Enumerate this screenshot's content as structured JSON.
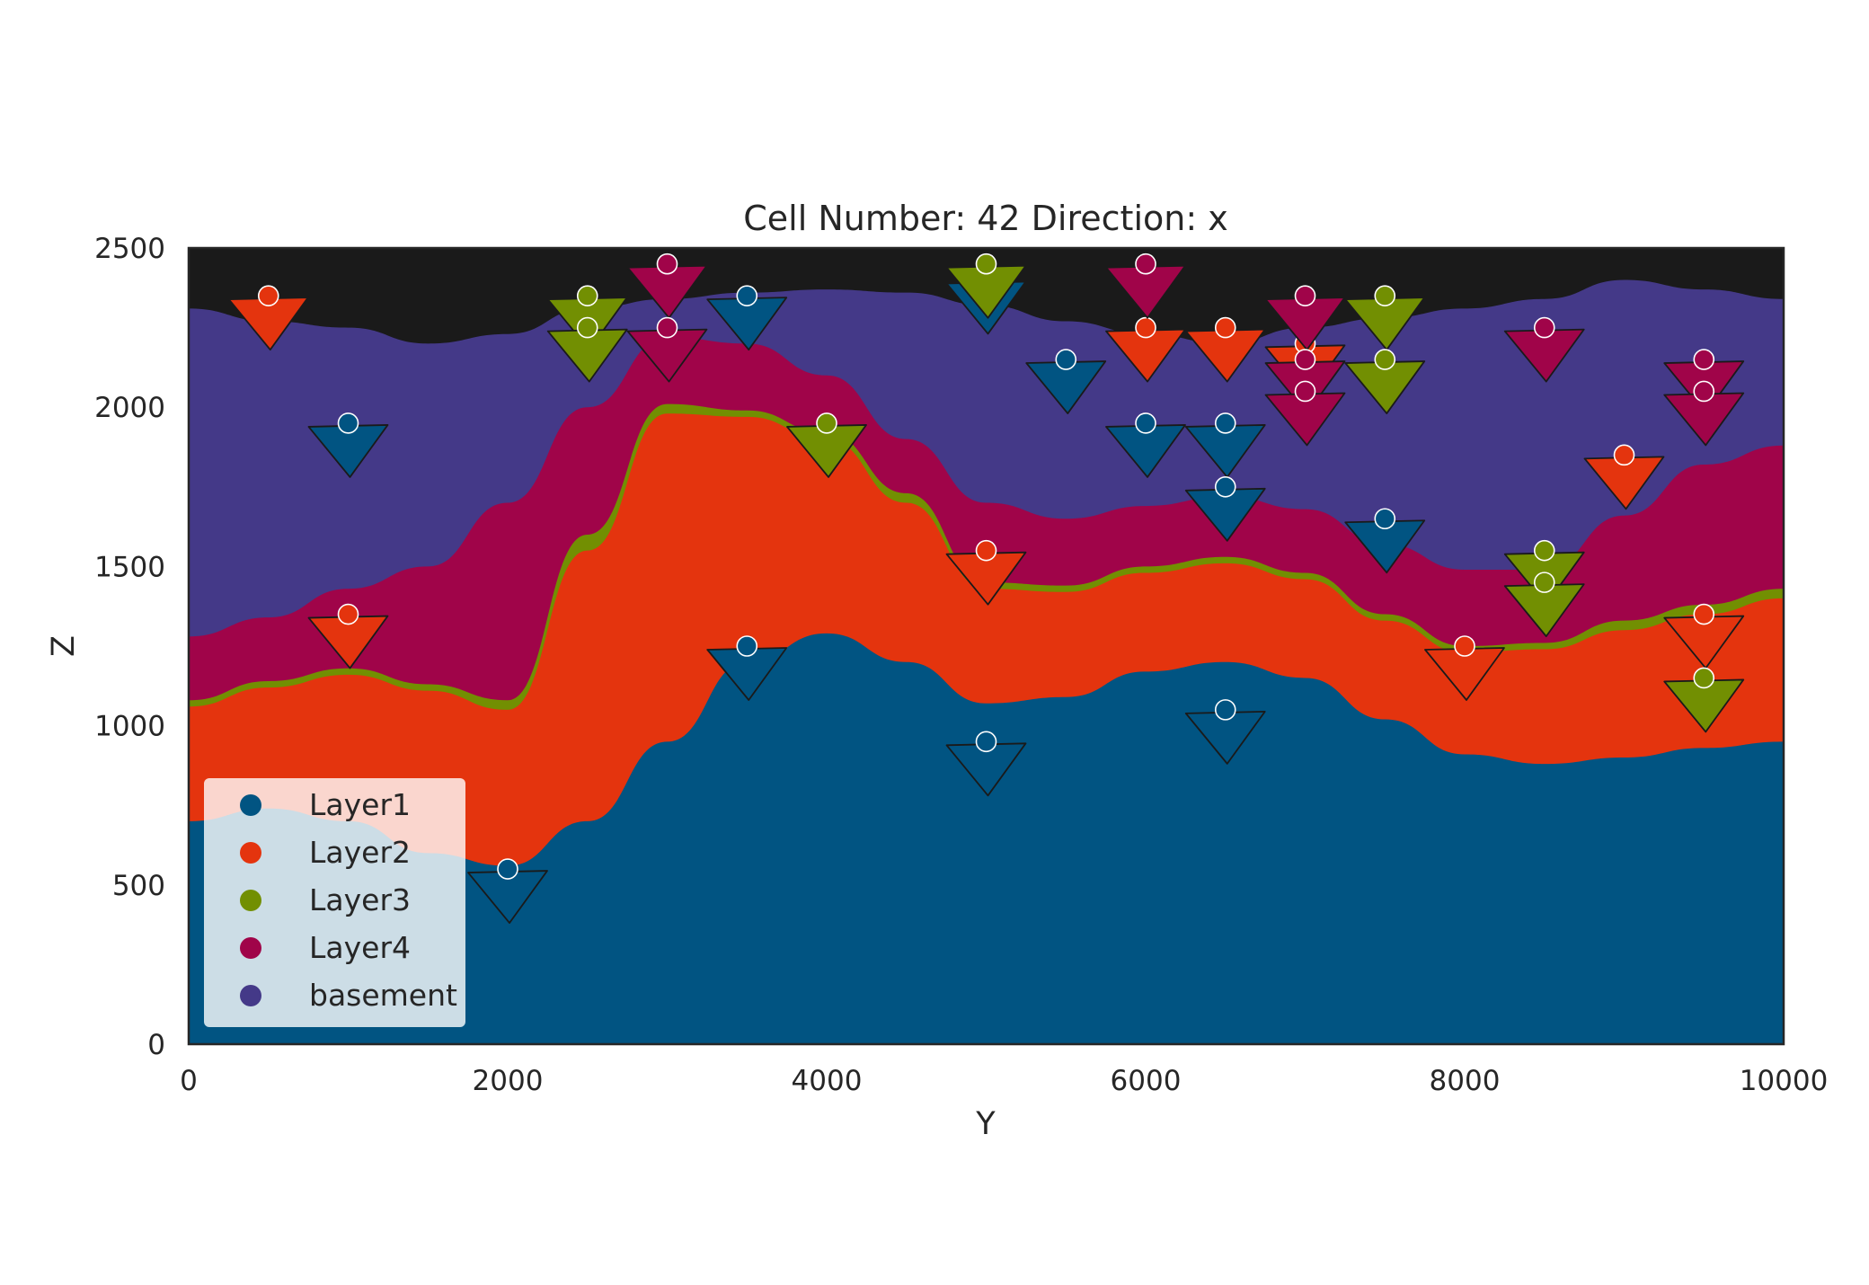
{
  "chart_data": {
    "type": "area",
    "title": "Cell Number: 42 Direction: x",
    "xlabel": "Y",
    "ylabel": "Z",
    "xlim": [
      0,
      10000
    ],
    "ylim": [
      0,
      2500
    ],
    "xticks": [
      0,
      2000,
      4000,
      6000,
      8000,
      10000
    ],
    "yticks": [
      0,
      500,
      1000,
      1500,
      2000,
      2500
    ],
    "grid": false,
    "legend_position": "lower-left",
    "colors": {
      "Layer1": "#015482",
      "Layer2": "#e4340e",
      "Layer3": "#728f02",
      "Layer4": "#a00449",
      "basement": "#443988",
      "above_topography": "#1a1a1a",
      "legend_box": "#ffffff"
    },
    "legend": [
      {
        "name": "Layer1",
        "color": "#015482"
      },
      {
        "name": "Layer2",
        "color": "#e4340e"
      },
      {
        "name": "Layer3",
        "color": "#728f02"
      },
      {
        "name": "Layer4",
        "color": "#a00449"
      },
      {
        "name": "basement",
        "color": "#443988"
      }
    ],
    "x": [
      0,
      500,
      1000,
      1500,
      2000,
      2500,
      3000,
      3500,
      4000,
      4500,
      5000,
      5500,
      6000,
      6500,
      7000,
      7500,
      8000,
      8500,
      9000,
      9500,
      10000
    ],
    "surfaces": [
      {
        "name": "Layer1",
        "top": [
          700,
          740,
          700,
          600,
          560,
          700,
          950,
          1200,
          1290,
          1200,
          1070,
          1090,
          1170,
          1200,
          1150,
          1020,
          910,
          880,
          900,
          930,
          950
        ]
      },
      {
        "name": "Layer2",
        "top": [
          1060,
          1120,
          1160,
          1110,
          1050,
          1550,
          1980,
          1970,
          1900,
          1700,
          1430,
          1420,
          1480,
          1510,
          1460,
          1330,
          1230,
          1240,
          1300,
          1350,
          1400
        ]
      },
      {
        "name": "Layer3",
        "top": [
          1080,
          1140,
          1180,
          1130,
          1080,
          1600,
          2010,
          1990,
          1920,
          1730,
          1450,
          1440,
          1500,
          1530,
          1480,
          1350,
          1250,
          1260,
          1330,
          1380,
          1430
        ]
      },
      {
        "name": "Layer4",
        "top": [
          1280,
          1340,
          1430,
          1500,
          1700,
          2000,
          2220,
          2200,
          2100,
          1900,
          1700,
          1650,
          1690,
          1720,
          1680,
          1570,
          1490,
          1490,
          1660,
          1820,
          1880
        ]
      },
      {
        "name": "basement",
        "top": [
          2310,
          2270,
          2250,
          2200,
          2230,
          2310,
          2340,
          2360,
          2370,
          2360,
          2320,
          2270,
          2230,
          2200,
          2250,
          2280,
          2310,
          2340,
          2400,
          2370,
          2340
        ]
      }
    ],
    "points": [
      {
        "series": "Layer2",
        "x": 500,
        "z": 2350
      },
      {
        "series": "Layer2",
        "x": 5000,
        "z": 1550
      },
      {
        "series": "Layer2",
        "x": 6000,
        "z": 2250
      },
      {
        "series": "Layer2",
        "x": 6500,
        "z": 2250
      },
      {
        "series": "Layer2",
        "x": 7000,
        "z": 2200
      },
      {
        "series": "Layer2",
        "x": 8000,
        "z": 1250
      },
      {
        "series": "Layer2",
        "x": 9000,
        "z": 1850
      },
      {
        "series": "Layer2",
        "x": 9500,
        "z": 1350
      },
      {
        "series": "Layer2",
        "x": 1000,
        "z": 1350
      },
      {
        "series": "Layer1",
        "x": 1000,
        "z": 1950
      },
      {
        "series": "Layer1",
        "x": 2000,
        "z": 550
      },
      {
        "series": "Layer1",
        "x": 3500,
        "z": 2350
      },
      {
        "series": "Layer1",
        "x": 3500,
        "z": 1250
      },
      {
        "series": "Layer1",
        "x": 5000,
        "z": 2400
      },
      {
        "series": "Layer1",
        "x": 5000,
        "z": 950
      },
      {
        "series": "Layer1",
        "x": 5500,
        "z": 2150
      },
      {
        "series": "Layer1",
        "x": 6000,
        "z": 1950
      },
      {
        "series": "Layer1",
        "x": 6500,
        "z": 1950
      },
      {
        "series": "Layer1",
        "x": 6500,
        "z": 1750
      },
      {
        "series": "Layer1",
        "x": 6500,
        "z": 1050
      },
      {
        "series": "Layer1",
        "x": 7500,
        "z": 1650
      },
      {
        "series": "Layer3",
        "x": 2500,
        "z": 2350
      },
      {
        "series": "Layer3",
        "x": 2500,
        "z": 2250
      },
      {
        "series": "Layer3",
        "x": 4000,
        "z": 1950
      },
      {
        "series": "Layer3",
        "x": 5000,
        "z": 2450
      },
      {
        "series": "Layer3",
        "x": 7500,
        "z": 2350
      },
      {
        "series": "Layer3",
        "x": 7500,
        "z": 2150
      },
      {
        "series": "Layer3",
        "x": 8500,
        "z": 1550
      },
      {
        "series": "Layer3",
        "x": 8500,
        "z": 1450
      },
      {
        "series": "Layer3",
        "x": 9500,
        "z": 1150
      },
      {
        "series": "Layer4",
        "x": 3000,
        "z": 2450
      },
      {
        "series": "Layer4",
        "x": 3000,
        "z": 2250
      },
      {
        "series": "Layer4",
        "x": 6000,
        "z": 2450
      },
      {
        "series": "Layer4",
        "x": 7000,
        "z": 2350
      },
      {
        "series": "Layer4",
        "x": 7000,
        "z": 2150
      },
      {
        "series": "Layer4",
        "x": 7000,
        "z": 2050
      },
      {
        "series": "Layer4",
        "x": 8500,
        "z": 2250
      },
      {
        "series": "Layer4",
        "x": 9500,
        "z": 2150
      },
      {
        "series": "Layer4",
        "x": 9500,
        "z": 2050
      }
    ]
  }
}
